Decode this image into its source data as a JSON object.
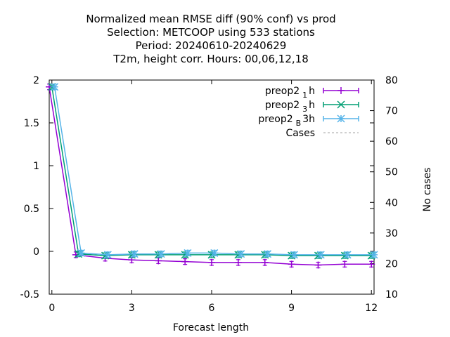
{
  "chart_data": {
    "type": "line",
    "title_lines": [
      "Normalized mean RMSE diff (90% conf) vs prod",
      "Selection: METCOOP using   533 stations",
      "Period: 20240610-20240629",
      "T2m, height corr.   Hours:  00,06,12,18"
    ],
    "xlabel": "Forecast length",
    "ylabel": "",
    "y2label": "No cases",
    "xlim": [
      -0.1,
      12.1
    ],
    "ylim": [
      -0.5,
      2
    ],
    "y2lim": [
      10,
      80
    ],
    "xticks": [
      "0",
      "3",
      "6",
      "9",
      "12"
    ],
    "yticks": [
      "-0.5",
      "0",
      "0.5",
      "1",
      "1.5",
      "2"
    ],
    "y2ticks": [
      "10",
      "20",
      "30",
      "40",
      "50",
      "60",
      "70",
      "80"
    ],
    "legend_position": "top-right",
    "series": [
      {
        "name": "preop2",
        "name_sub": "1",
        "name_suffix": "h",
        "color": "#9400d3",
        "marker": "plus",
        "x": [
          -0.1,
          0.9,
          2,
          3,
          4,
          5,
          6,
          7,
          8,
          9,
          10,
          11,
          12
        ],
        "y": [
          1.92,
          -0.04,
          -0.08,
          -0.1,
          -0.11,
          -0.12,
          -0.13,
          -0.13,
          -0.13,
          -0.15,
          -0.16,
          -0.15,
          -0.15
        ]
      },
      {
        "name": "preop2",
        "name_sub": "3",
        "name_suffix": "h",
        "color": "#009e73",
        "marker": "cross",
        "x": [
          0,
          1,
          2,
          3,
          4,
          5,
          6,
          7,
          8,
          9,
          10,
          11,
          12
        ],
        "y": [
          1.92,
          -0.03,
          -0.05,
          -0.04,
          -0.04,
          -0.04,
          -0.04,
          -0.04,
          -0.04,
          -0.05,
          -0.05,
          -0.05,
          -0.05
        ]
      },
      {
        "name": "preop2",
        "name_sub": "B",
        "name_suffix": "3h",
        "color": "#56b4e9",
        "marker": "star",
        "x": [
          0.1,
          1.1,
          2.1,
          3.1,
          4.1,
          5.1,
          6.1,
          7.1,
          8.1,
          9.1,
          10.1,
          11.1,
          12.1
        ],
        "y": [
          1.92,
          -0.02,
          -0.04,
          -0.03,
          -0.03,
          -0.02,
          -0.02,
          -0.03,
          -0.03,
          -0.04,
          -0.04,
          -0.04,
          -0.04
        ]
      },
      {
        "name": "Cases",
        "name_sub": "",
        "name_suffix": "",
        "color": "#a0a0a0",
        "marker": "none",
        "dashed": true,
        "axis": "y2",
        "x": [],
        "y": []
      }
    ]
  }
}
